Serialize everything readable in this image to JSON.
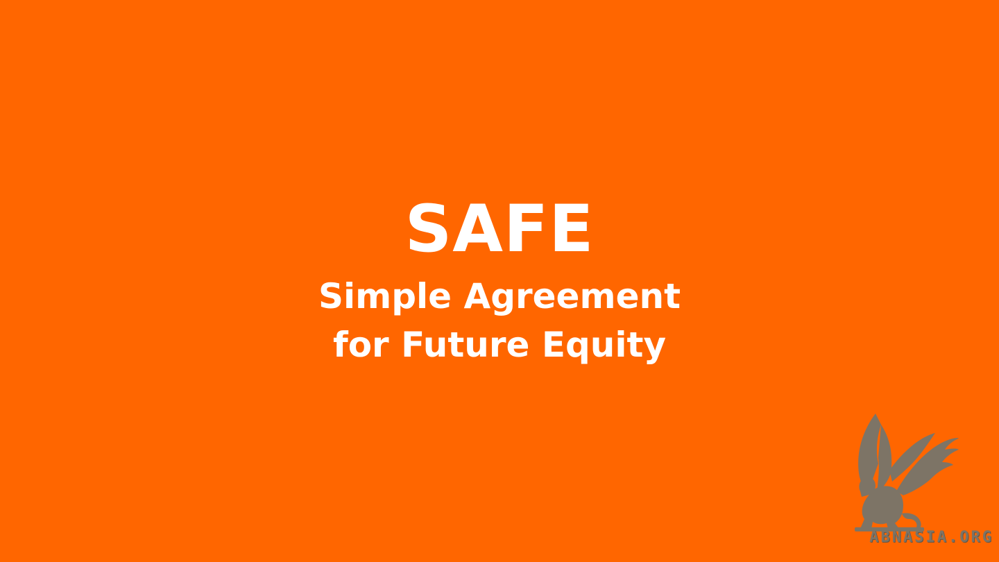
{
  "slide": {
    "title": "SAFE",
    "subtitle_line1": "Simple Agreement",
    "subtitle_line2": "for Future Equity"
  },
  "watermark": {
    "text": "ABNASIA.ORG",
    "icon": "griffin-icon",
    "color": "#7d7466"
  },
  "colors": {
    "background": "#ff6600",
    "text": "#ffffff"
  }
}
